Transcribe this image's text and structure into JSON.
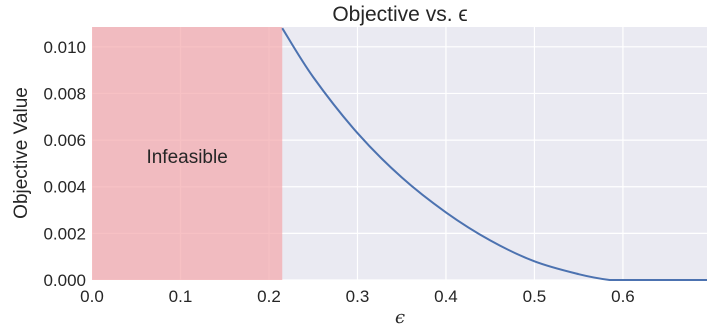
{
  "chart_data": {
    "type": "line",
    "title": "Objective vs. ϵ",
    "xlabel": "ϵ",
    "ylabel": "Objective Value",
    "xlim": [
      0.0,
      0.695
    ],
    "ylim": [
      0.0,
      0.01085
    ],
    "xticks": [
      "0.0",
      "0.1",
      "0.2",
      "0.3",
      "0.4",
      "0.5",
      "0.6"
    ],
    "yticks": [
      "0.000",
      "0.002",
      "0.004",
      "0.006",
      "0.008",
      "0.010"
    ],
    "grid": true,
    "background_color": "#eaeaf2",
    "line_color": "#4c72b0",
    "infeasible_region": {
      "label": "Infeasible",
      "x_start": 0.0,
      "x_end": 0.215,
      "color": "#f4a6ab"
    },
    "series": [
      {
        "x": [
          0.215,
          0.25,
          0.3,
          0.35,
          0.4,
          0.45,
          0.5,
          0.55,
          0.585,
          0.6,
          0.65,
          0.695
        ],
        "values": [
          0.0108,
          0.0087,
          0.0063,
          0.0044,
          0.0029,
          0.0017,
          0.0008,
          0.00025,
          0.0,
          0.0,
          0.0,
          0.0
        ]
      }
    ]
  }
}
